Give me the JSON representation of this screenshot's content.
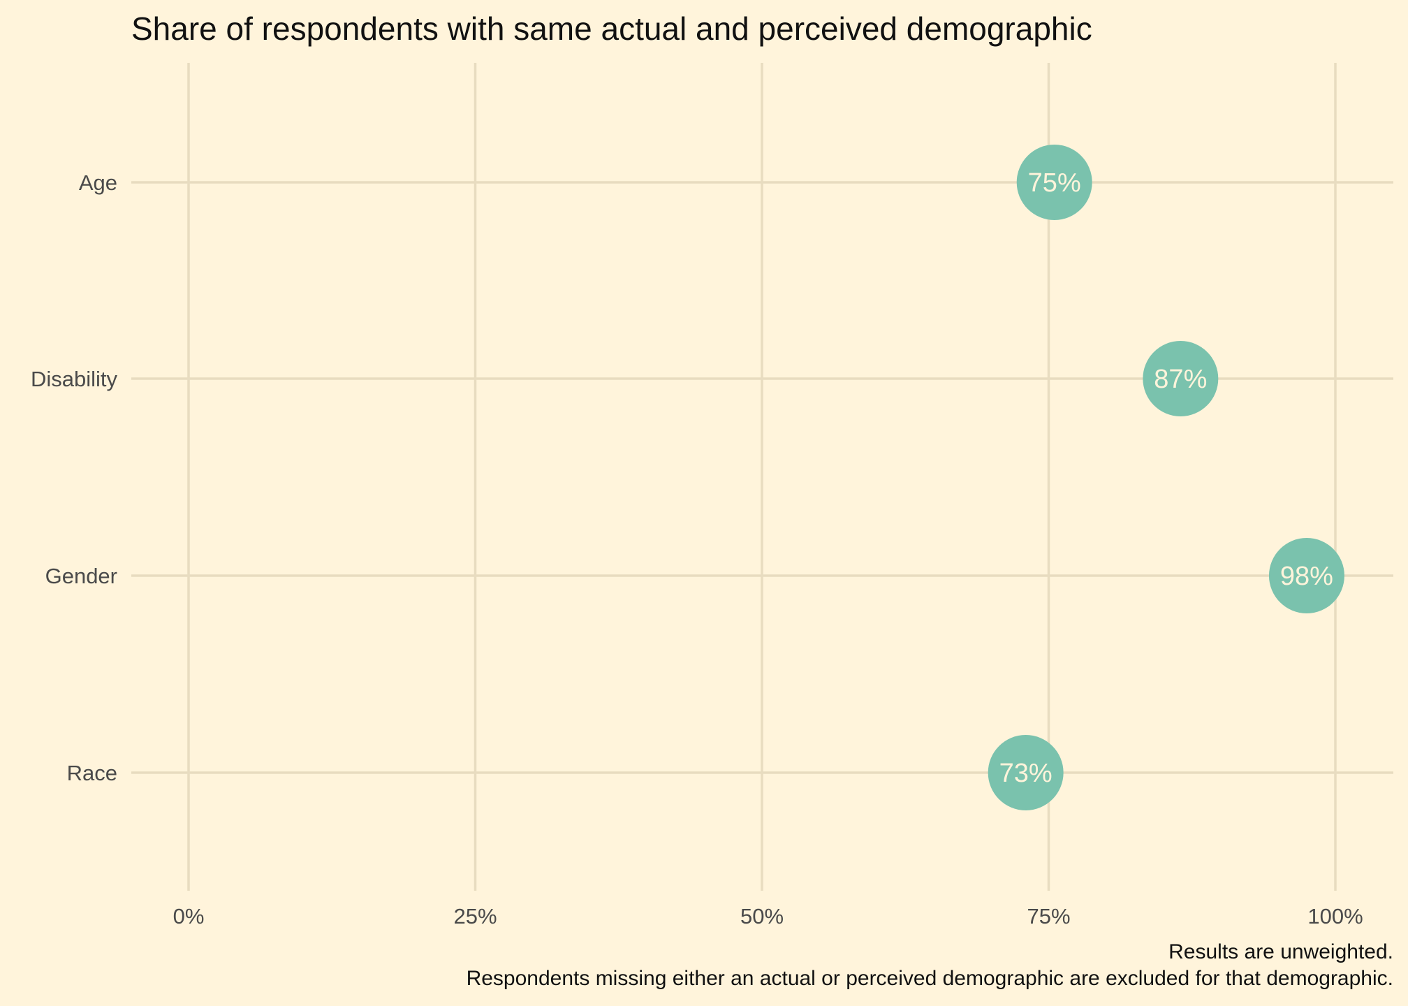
{
  "chart_data": {
    "type": "scatter",
    "title": "Share of respondents with same actual and perceived demographic",
    "categories": [
      "Age",
      "Disability",
      "Gender",
      "Race"
    ],
    "values": [
      0.755,
      0.865,
      0.975,
      0.73
    ],
    "value_labels": [
      "75%",
      "87%",
      "98%",
      "73%"
    ],
    "xlim": [
      0,
      1
    ],
    "x_ticks": [
      0,
      0.25,
      0.5,
      0.75,
      1.0
    ],
    "x_tick_labels": [
      "0%",
      "25%",
      "50%",
      "75%",
      "100%"
    ],
    "xlabel": "",
    "ylabel": "",
    "grid": true,
    "legend": "none",
    "caption": [
      "Results are unweighted.",
      "Respondents missing either an actual or perceived demographic are excluded for that demographic."
    ],
    "colors": {
      "background": "#FFF4DB",
      "grid": "#E8DCC0",
      "point": "#7AC2AD",
      "point_label": "#FFF4DB"
    }
  }
}
